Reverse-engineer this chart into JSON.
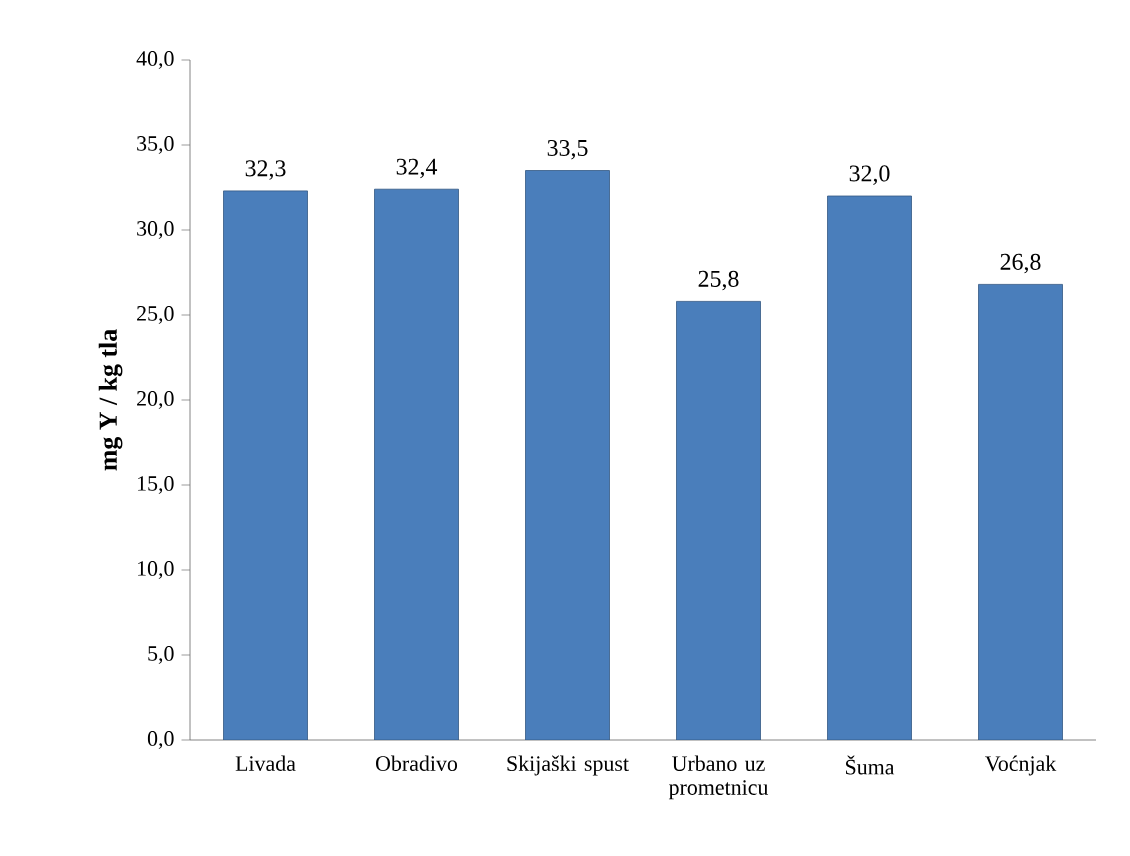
{
  "chart_data": {
    "type": "bar",
    "ylabel": "mg Y / kg tla",
    "categories": [
      "Livada",
      "Obradivo",
      "Skijaški spust",
      "Urbano uz prometnicu",
      "Šuma",
      "Voćnjak"
    ],
    "values": [
      32.3,
      32.4,
      33.5,
      25.8,
      32.0,
      26.8
    ],
    "value_labels": [
      "32,3",
      "32,4",
      "33,5",
      "25,8",
      "32,0",
      "26,8"
    ],
    "color": "#4a7ebb",
    "ylim": [
      0,
      40
    ],
    "yticks": [
      {
        "value": 0,
        "label": "0,0"
      },
      {
        "value": 5,
        "label": "5,0"
      },
      {
        "value": 10,
        "label": "10,0"
      },
      {
        "value": 15,
        "label": "15,0"
      },
      {
        "value": 20,
        "label": "20,0"
      },
      {
        "value": 25,
        "label": "25,0"
      },
      {
        "value": 30,
        "label": "30,0"
      },
      {
        "value": 35,
        "label": "35,0"
      },
      {
        "value": 40,
        "label": "40,0"
      }
    ]
  }
}
